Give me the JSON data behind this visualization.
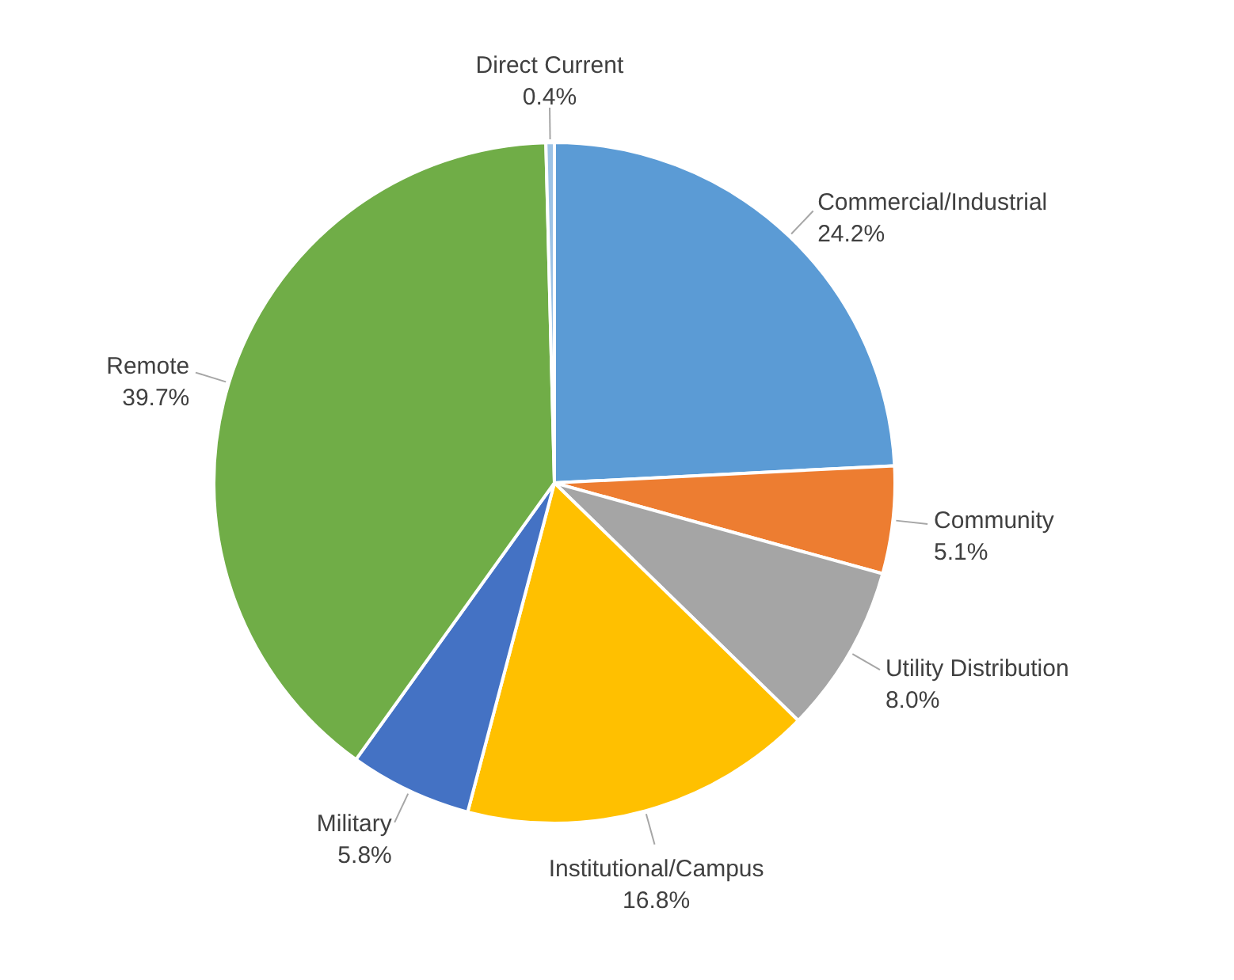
{
  "chart_data": {
    "type": "pie",
    "categories": [
      "Commercial/Industrial",
      "Community",
      "Utility Distribution",
      "Institutional/Campus",
      "Military",
      "Remote",
      "Direct Current"
    ],
    "values": [
      24.2,
      5.1,
      8.0,
      16.8,
      5.8,
      39.7,
      0.4
    ],
    "colors": [
      "#5b9bd5",
      "#ed7d31",
      "#a5a5a5",
      "#ffc000",
      "#4472c4",
      "#70ad47",
      "#9dc3e6"
    ],
    "value_labels": [
      "24.2%",
      "5.1%",
      "8.0%",
      "16.8%",
      "5.8%",
      "39.7%",
      "0.4%"
    ]
  }
}
